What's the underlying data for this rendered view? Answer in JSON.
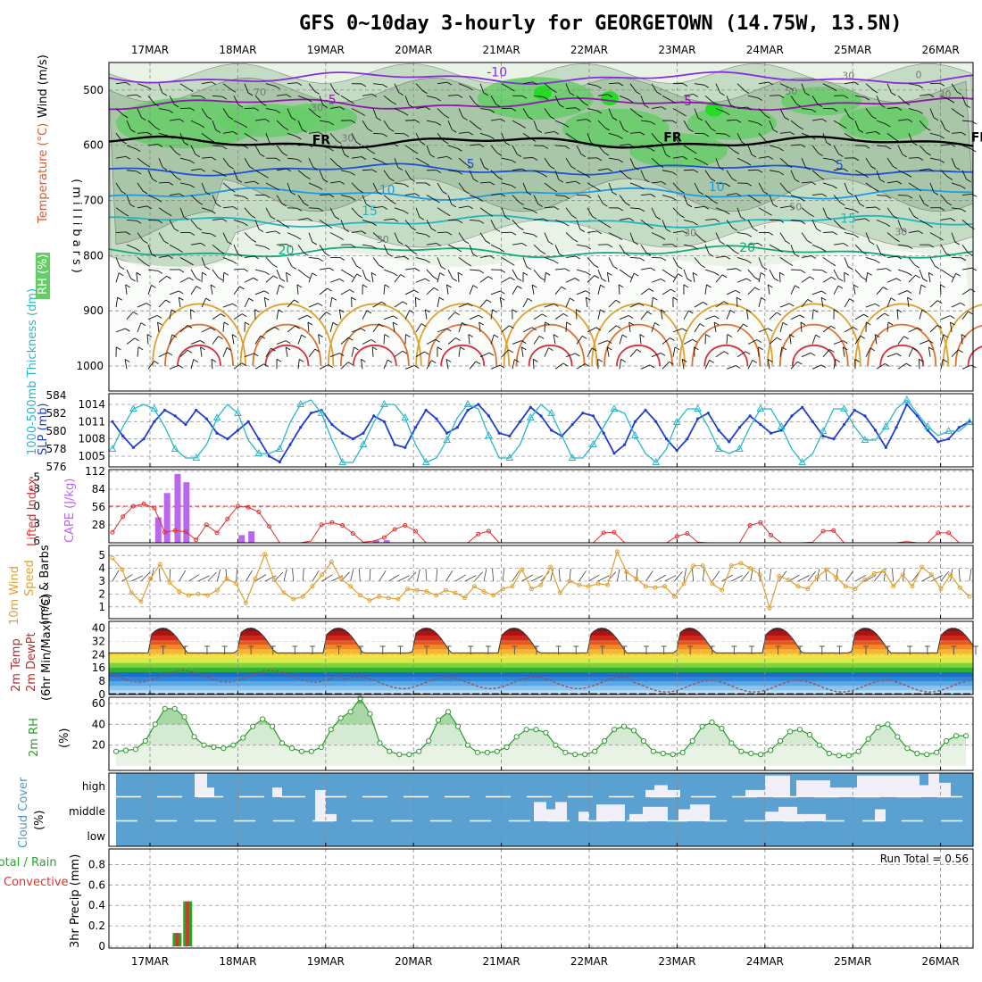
{
  "title": "GFS 0~10day 3-hourly for GEORGETOWN (14.75W, 13.5N)",
  "colors": {
    "rh_light": "#e8f3e6",
    "rh_mid": "#c5dcc4",
    "rh_dark": "#a9c7a8",
    "rh_green": "#66cc66",
    "rh_bright": "#22dd22",
    "t_minus10": "#8a2be2",
    "t_minus5": "#8b1aa8",
    "t_fr": "#000000",
    "t_5": "#1f4fd6",
    "t_10": "#1e9be0",
    "t_15": "#22b5c0",
    "t_20": "#17a97a",
    "t_warm1": "#e0a030",
    "t_warm2": "#e07030",
    "t_warm3": "#d83040",
    "slp": "#1f3fcf",
    "thickness": "#28b8c8",
    "lifted": "#e03030",
    "cape": "#bb66ee",
    "wind10": "#e0a030",
    "cloud_bg": "#5aa0d0",
    "cloud_fill": "#f0eef6",
    "precip_total": "#22aa22",
    "precip_conv": "#e03030",
    "rh2m": "#2a9a2a"
  },
  "chart_data": [
    {
      "id": "upper-air",
      "type": "heatmap",
      "ylabel_parts": [
        "RH (%)",
        "Temperature (°C)",
        "Wind (m/s)"
      ],
      "ylabel_axis": "(millibars)",
      "ylim": [
        1000,
        450
      ],
      "yticks": [
        500,
        600,
        700,
        800,
        900,
        1000
      ],
      "contour_labels": [
        {
          "text": "-10",
          "t": 3.95,
          "p": 475
        },
        {
          "text": "-5",
          "t": 2.05,
          "p": 525
        },
        {
          "text": "-5",
          "t": 6.1,
          "p": 528
        },
        {
          "text": "FR",
          "t": 1.95,
          "p": 598
        },
        {
          "text": "FR",
          "t": 5.95,
          "p": 593
        },
        {
          "text": "FR",
          "t": 9.45,
          "p": 593
        },
        {
          "text": "5",
          "t": 3.65,
          "p": 642
        },
        {
          "text": "5",
          "t": 7.85,
          "p": 643
        },
        {
          "text": "10",
          "t": 2.7,
          "p": 689
        },
        {
          "text": "10",
          "t": 6.45,
          "p": 683
        },
        {
          "text": "15",
          "t": 2.5,
          "p": 727
        },
        {
          "text": "15",
          "t": 7.95,
          "p": 740
        },
        {
          "text": "20",
          "t": 1.55,
          "p": 798
        },
        {
          "text": "20",
          "t": 6.8,
          "p": 793
        }
      ],
      "rh_labels": [
        {
          "text": "70",
          "t": 1.25,
          "p": 510
        },
        {
          "text": "30",
          "t": 1.9,
          "p": 538
        },
        {
          "text": "30",
          "t": 2.25,
          "p": 593
        },
        {
          "text": "50",
          "t": 7.35,
          "p": 718
        },
        {
          "text": "30",
          "t": 6.15,
          "p": 765
        },
        {
          "text": "30",
          "t": 2.65,
          "p": 777
        },
        {
          "text": "30",
          "t": 8.55,
          "p": 763
        },
        {
          "text": "30",
          "t": 7.95,
          "p": 480
        },
        {
          "text": "0",
          "t": 8.75,
          "p": 478
        },
        {
          "text": "30",
          "t": 9.05,
          "p": 514
        },
        {
          "text": "50",
          "t": 7.3,
          "p": 508
        }
      ],
      "isotherms": [
        {
          "label": "-10",
          "p": 478
        },
        {
          "label": "-5",
          "p": 525
        },
        {
          "label": "FR",
          "p": 595
        },
        {
          "label": "5",
          "p": 644
        },
        {
          "label": "10",
          "p": 688
        },
        {
          "label": "15",
          "p": 738
        },
        {
          "label": "20",
          "p": 793
        }
      ]
    },
    {
      "id": "slp-thickness",
      "type": "line",
      "ylabel_left": "1000-500mb Thickness (dm)",
      "ylabel_right": "SLP (mb)",
      "thickness_ticks": [
        576,
        578,
        580,
        582,
        584
      ],
      "slp_ticks": [
        1005,
        1008,
        1011,
        1014
      ],
      "series": [
        {
          "name": "SLP (mb)",
          "values": [
            1011,
            1008.5,
            1006.5,
            1008,
            1011,
            1013,
            1012,
            1010.5,
            1013,
            1011.5,
            1009,
            1008,
            1009.5,
            1011,
            1008,
            1005,
            1004,
            1007,
            1010,
            1012.5,
            1013,
            1010.5,
            1009,
            1008,
            1009,
            1012,
            1011,
            1007,
            1006.5,
            1010,
            1013,
            1011.5,
            1009,
            1010,
            1013,
            1014,
            1012,
            1009,
            1008.5,
            1011,
            1013.5,
            1012,
            1009.5,
            1008.5,
            1010.5,
            1012.5,
            1012,
            1009,
            1005.5,
            1007,
            1011,
            1013,
            1011,
            1008,
            1006,
            1008,
            1011.5,
            1012.5,
            1009.5,
            1007.5,
            1010,
            1012,
            1010.5,
            1009,
            1009.5,
            1012,
            1013.5,
            1011,
            1008.5,
            1008,
            1010.5,
            1013,
            1012,
            1009.5,
            1006.5,
            1010,
            1014,
            1012,
            1009.5,
            1007.5,
            1008,
            1010,
            1011
          ]
        },
        {
          "name": "Thickness (dm)",
          "values": [
            578,
            580.5,
            582.5,
            583,
            582.5,
            580.5,
            578,
            577,
            577,
            578.5,
            581.5,
            583,
            582,
            579,
            577.5,
            577.5,
            578,
            581,
            583,
            583.5,
            582,
            579,
            576.5,
            576.5,
            578.5,
            581,
            583,
            583,
            581.5,
            578.5,
            576.5,
            577,
            579,
            581.5,
            583,
            582.5,
            579.5,
            577,
            577,
            578.5,
            581.5,
            583,
            582,
            579.5,
            577,
            577,
            578.5,
            580.5,
            582.5,
            582,
            579.5,
            577.5,
            576.5,
            578,
            581,
            582.5,
            582.5,
            580.5,
            578,
            577.5,
            578,
            580.5,
            582.5,
            582.5,
            580.5,
            578,
            576.5,
            577.5,
            580,
            582.5,
            582.5,
            580.5,
            579,
            579,
            580.5,
            582.5,
            583.5,
            582,
            580.5,
            579.5,
            580,
            580,
            581
          ]
        }
      ]
    },
    {
      "id": "cape-li",
      "type": "bar",
      "ylabel_left": "Lifted Index",
      "ylabel_right": "CAPE (J/kg)",
      "li_ticks": [
        -5,
        -3,
        0,
        3,
        6
      ],
      "cape_ticks": [
        28,
        56,
        84,
        112
      ],
      "cape_series": {
        "name": "CAPE (J/kg)",
        "x_days": [
          0.1,
          0.2,
          0.32,
          0.42,
          1.05,
          1.16,
          2.58,
          2.7
        ],
        "values": [
          40,
          78,
          108,
          95,
          12,
          18,
          4,
          4
        ]
      },
      "li_series": {
        "name": "Lifted Index",
        "values": [
          4.5,
          1.8,
          0,
          -0.4,
          0.3,
          4.5,
          4.2,
          4.4,
          5.8,
          3.2,
          4.6,
          2.2,
          0,
          0.2,
          1,
          3.5,
          6.5,
          8.5,
          8,
          6,
          3.2,
          2.8,
          3.3,
          4.7,
          6.2,
          6,
          5.4,
          4,
          3.3,
          4.3,
          6.3,
          6.5,
          6.5,
          7.5,
          6.5,
          4.8,
          4.3,
          6.6,
          7.5,
          7.5,
          8,
          8.2,
          7.5,
          6.3,
          7.5,
          8.3,
          6.6,
          4.6,
          4.5,
          6.8,
          8.6,
          8.3,
          7.5,
          7.6,
          5.2,
          4.7,
          6.2,
          7.8,
          8,
          7.8,
          6.3,
          3.3,
          2.8,
          5,
          7,
          8.2,
          8,
          6.2,
          4.3,
          4.2,
          6.8,
          8.4,
          8,
          8.2,
          7.2,
          7.9,
          6.1,
          7.5,
          8.2,
          4.6,
          4.6,
          6.8,
          8.6
        ]
      }
    },
    {
      "id": "wind10m",
      "type": "line",
      "ylabel_parts": [
        "10m Wind",
        "Speed",
        "(m/s) & Barbs"
      ],
      "yticks": [
        1,
        2,
        3,
        4,
        5
      ],
      "series": [
        {
          "name": "10m Wind Speed",
          "values": [
            4.8,
            3.9,
            2.1,
            1.4,
            3.2,
            4.3,
            2.9,
            2.2,
            1.9,
            2.0,
            1.9,
            2.3,
            3.2,
            2.8,
            1.3,
            3.2,
            5.1,
            3.1,
            2.1,
            1.6,
            1.8,
            2.6,
            3.5,
            4.5,
            3.2,
            2.6,
            1.9,
            1.5,
            1.8,
            1.7,
            1.6,
            2.4,
            2.3,
            2.2,
            1.9,
            2.3,
            2.1,
            1.7,
            2.6,
            2.2,
            1.9,
            2.4,
            2.6,
            3.9,
            2.4,
            2.7,
            4.1,
            2.1,
            3.0,
            2.7,
            2.6,
            2.8,
            2.7,
            5.3,
            3.7,
            3.2,
            2.6,
            2.5,
            2.6,
            1.8,
            2.8,
            4.2,
            4.2,
            2.8,
            2.3,
            4.2,
            4.4,
            4.0,
            3.5,
            0.9,
            3.4,
            3.1,
            2.6,
            2.4,
            3.3,
            3.9,
            3.3,
            2.6,
            2.4,
            3.1,
            3.6,
            3.8,
            2.6,
            3.5,
            2.6,
            4.1,
            3.5,
            2.4,
            3.5,
            2.5,
            1.8
          ]
        }
      ]
    },
    {
      "id": "temp2m",
      "type": "area",
      "ylabel_parts": [
        "2m Temp",
        "2m DewPt",
        "(6hr Min/Max) (°C)"
      ],
      "yticks": [
        0,
        8,
        16,
        24,
        32,
        40
      ],
      "band_colors": [
        "#bfe0f6",
        "#8cc6f0",
        "#5aa8e6",
        "#2d86d8",
        "#1e6cc6",
        "#2cb52c",
        "#7fd43b",
        "#d6ec4a",
        "#f6e14a",
        "#f7b535",
        "#f08a28",
        "#e8561e",
        "#d0281c",
        "#a81414",
        "#6e1a1a",
        "#7a5050"
      ],
      "series": [
        {
          "name": "2m Temp",
          "values": [
            37,
            40,
            40,
            39,
            36,
            31,
            27,
            25.5
          ]
        },
        {
          "name": "2m DewPt",
          "values": [
            9,
            11,
            14,
            15,
            13,
            11,
            12,
            13
          ]
        }
      ]
    },
    {
      "id": "rh2m",
      "type": "area",
      "ylabel_parts": [
        "2m RH",
        "(%)"
      ],
      "yticks": [
        20,
        40,
        60
      ],
      "series": [
        {
          "name": "2m RH",
          "values": [
            14,
            15,
            16,
            24,
            40,
            55,
            55,
            47,
            28,
            20,
            18,
            17,
            20,
            27,
            38,
            45,
            38,
            22,
            17,
            14,
            14,
            18,
            35,
            46,
            52,
            65,
            50,
            22,
            14,
            11,
            11,
            14,
            24,
            44,
            52,
            38,
            20,
            13,
            13,
            14,
            18,
            28,
            35,
            35,
            32,
            20,
            13,
            11,
            11,
            14,
            24,
            35,
            38,
            34,
            24,
            14,
            12,
            11,
            13,
            24,
            38,
            42,
            36,
            22,
            14,
            12,
            11,
            15,
            24,
            33,
            35,
            30,
            20,
            12,
            10,
            10,
            14,
            26,
            37,
            40,
            28,
            17,
            12,
            11,
            13,
            24,
            29,
            29
          ]
        }
      ]
    },
    {
      "id": "cloud",
      "type": "bar",
      "ylabel_parts": [
        "Cloud Cover",
        "(%)"
      ],
      "levels": [
        "high",
        "middle",
        "low"
      ]
    },
    {
      "id": "precip",
      "type": "bar",
      "ylabel_parts": [
        "Total / Rain",
        "Convective",
        "3hr Precip (mm)"
      ],
      "yticks": [
        0,
        0.2,
        0.4,
        0.6,
        0.8
      ],
      "run_total": "Run Total = 0.56",
      "series": [
        {
          "name": "Total",
          "x_days": [
            0.35,
            0.47
          ],
          "values": [
            0.13,
            0.44
          ]
        },
        {
          "name": "Convective",
          "x_days": [
            0.35,
            0.47
          ],
          "values": [
            0.13,
            0.44
          ]
        }
      ]
    }
  ],
  "date_ticks": [
    "17MAR",
    "18MAR",
    "19MAR",
    "20MAR",
    "21MAR",
    "22MAR",
    "23MAR",
    "24MAR",
    "25MAR",
    "26MAR"
  ]
}
